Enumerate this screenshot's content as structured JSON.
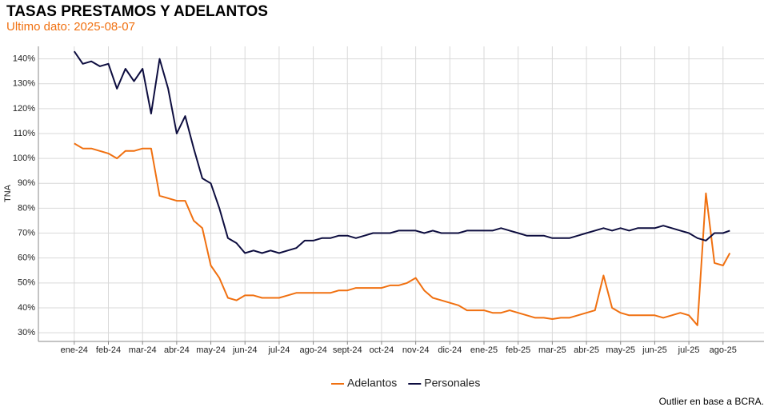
{
  "chart_data": {
    "type": "line",
    "title": "TASAS PRESTAMOS Y ADELANTOS",
    "subtitle": "Ultimo dato: 2025-08-07",
    "y_label": "TNA",
    "caption": "Outlier en base a BCRA.",
    "x": [
      0,
      0.25,
      0.5,
      0.75,
      1,
      1.25,
      1.5,
      1.75,
      2,
      2.25,
      2.5,
      2.75,
      3,
      3.25,
      3.5,
      3.75,
      4,
      4.25,
      4.5,
      4.75,
      5,
      5.25,
      5.5,
      5.75,
      6,
      6.25,
      6.5,
      6.75,
      7,
      7.25,
      7.5,
      7.75,
      8,
      8.25,
      8.5,
      8.75,
      9,
      9.25,
      9.5,
      9.75,
      10,
      10.25,
      10.5,
      10.75,
      11,
      11.25,
      11.5,
      11.75,
      12,
      12.25,
      12.5,
      12.75,
      13,
      13.25,
      13.5,
      13.75,
      14,
      14.25,
      14.5,
      14.75,
      15,
      15.25,
      15.5,
      15.75,
      16,
      16.25,
      16.5,
      16.75,
      17,
      17.25,
      17.5,
      17.75,
      18,
      18.25,
      18.5,
      18.75,
      19,
      19.2
    ],
    "series": [
      {
        "name": "Adelantos",
        "color": "#f07010",
        "values": [
          106,
          104,
          104,
          103,
          102,
          100,
          103,
          103,
          104,
          104,
          85,
          84,
          83,
          83,
          75,
          72,
          57,
          52,
          44,
          43,
          45,
          45,
          44,
          44,
          44,
          45,
          46,
          46,
          46,
          46,
          46,
          47,
          47,
          48,
          48,
          48,
          48,
          49,
          49,
          50,
          52,
          47,
          44,
          43,
          42,
          41,
          39,
          39,
          39,
          38,
          38,
          39,
          38,
          37,
          36,
          36,
          35.5,
          36,
          36,
          37,
          38,
          39,
          53,
          40,
          38,
          37,
          37,
          37,
          37,
          36,
          37,
          38,
          37,
          33,
          86,
          58,
          57,
          62
        ]
      },
      {
        "name": "Personales",
        "color": "#0d0d3f",
        "values": [
          143,
          138,
          139,
          137,
          138,
          128,
          136,
          131,
          136,
          118,
          140,
          128,
          110,
          117,
          104,
          92,
          90,
          80,
          68,
          66,
          62,
          63,
          62,
          63,
          62,
          63,
          64,
          67,
          67,
          68,
          68,
          69,
          69,
          68,
          69,
          70,
          70,
          70,
          71,
          71,
          71,
          70,
          71,
          70,
          70,
          70,
          71,
          71,
          71,
          71,
          72,
          71,
          70,
          69,
          69,
          69,
          68,
          68,
          68,
          69,
          70,
          71,
          72,
          71,
          72,
          71,
          72,
          72,
          72,
          73,
          72,
          71,
          70,
          68,
          67,
          70,
          70,
          71
        ]
      }
    ],
    "xlim": [
      -1.05,
      20.2
    ],
    "xticks": [
      {
        "value": 0,
        "label": "ene-24"
      },
      {
        "value": 1,
        "label": "feb-24"
      },
      {
        "value": 2,
        "label": "mar-24"
      },
      {
        "value": 3,
        "label": "abr-24"
      },
      {
        "value": 4,
        "label": "may-24"
      },
      {
        "value": 5,
        "label": "jun-24"
      },
      {
        "value": 6,
        "label": "jul-24"
      },
      {
        "value": 7,
        "label": "ago-24"
      },
      {
        "value": 8,
        "label": "sept-24"
      },
      {
        "value": 9,
        "label": "oct-24"
      },
      {
        "value": 10,
        "label": "nov-24"
      },
      {
        "value": 11,
        "label": "dic-24"
      },
      {
        "value": 12,
        "label": "ene-25"
      },
      {
        "value": 13,
        "label": "feb-25"
      },
      {
        "value": 14,
        "label": "mar-25"
      },
      {
        "value": 15,
        "label": "abr-25"
      },
      {
        "value": 16,
        "label": "may-25"
      },
      {
        "value": 17,
        "label": "jun-25"
      },
      {
        "value": 18,
        "label": "jul-25"
      },
      {
        "value": 19,
        "label": "ago-25"
      }
    ],
    "ylim": [
      26.5,
      145
    ],
    "yticks": [
      {
        "value": 30,
        "label": "30%"
      },
      {
        "value": 40,
        "label": "40%"
      },
      {
        "value": 50,
        "label": "50%"
      },
      {
        "value": 60,
        "label": "60%"
      },
      {
        "value": 70,
        "label": "70%"
      },
      {
        "value": 80,
        "label": "80%"
      },
      {
        "value": 90,
        "label": "90%"
      },
      {
        "value": 100,
        "label": "100%"
      },
      {
        "value": 110,
        "label": "110%"
      },
      {
        "value": 120,
        "label": "120%"
      },
      {
        "value": 130,
        "label": "130%"
      },
      {
        "value": 140,
        "label": "140%"
      }
    ],
    "grid": true,
    "legend": "bottom"
  }
}
